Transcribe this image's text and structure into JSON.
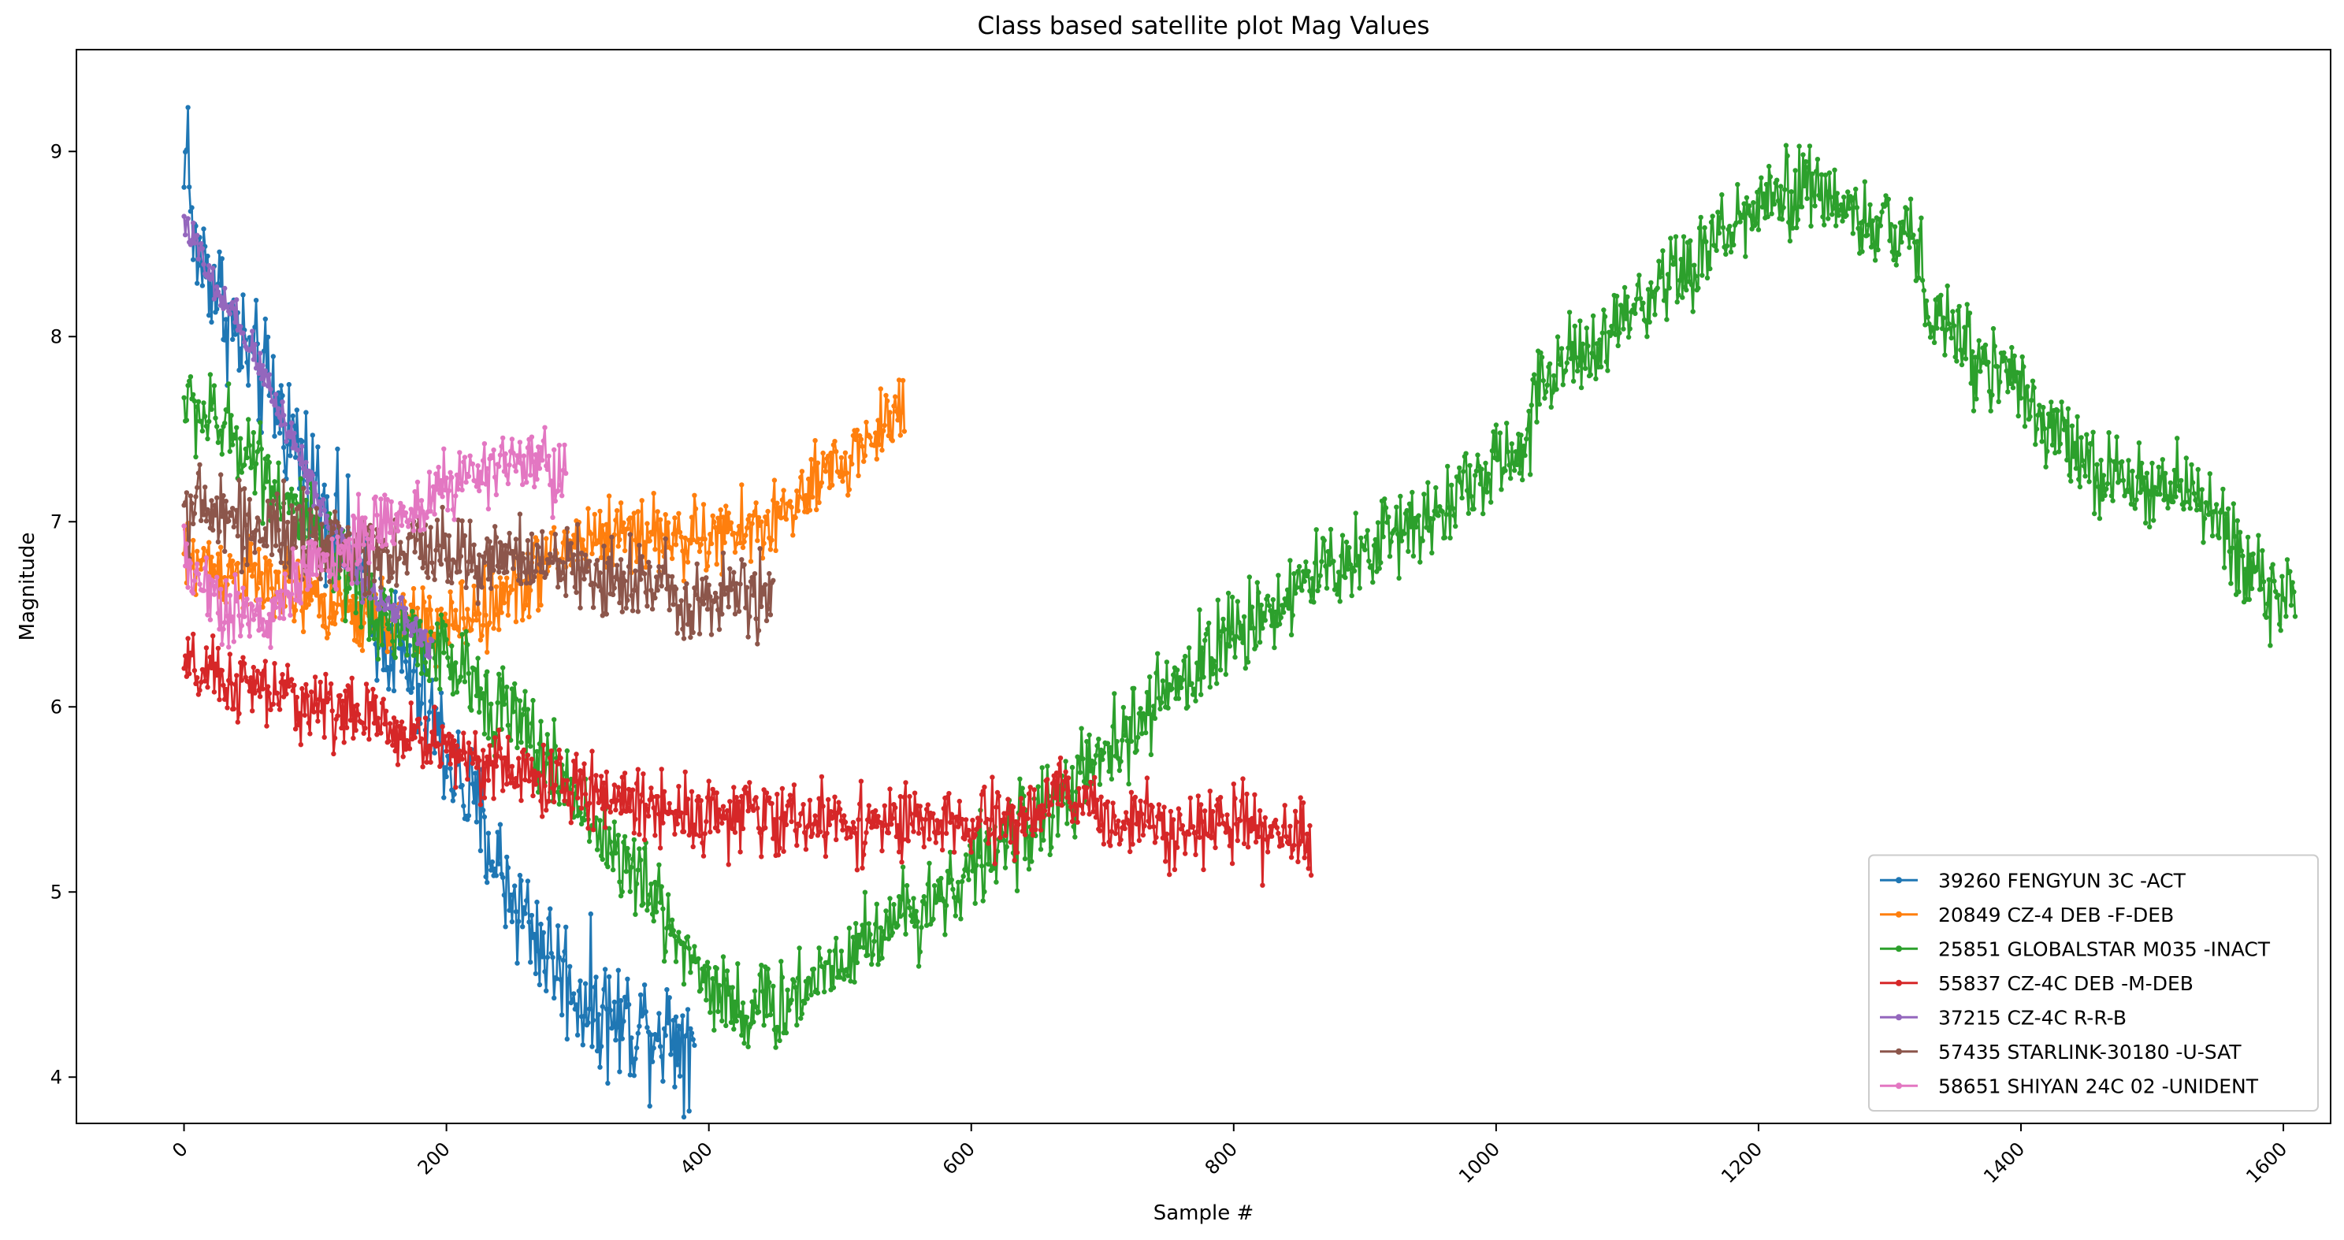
{
  "chart_data": {
    "type": "line",
    "title": "Class based satellite plot Mag Values",
    "xlabel": "Sample #",
    "ylabel": "Magnitude",
    "xlim": [
      -82,
      1636
    ],
    "ylim": [
      3.75,
      9.55
    ],
    "xticks": [
      0,
      200,
      400,
      600,
      800,
      1000,
      1200,
      1400,
      1600
    ],
    "xtick_labels": [
      "0",
      "200",
      "400",
      "600",
      "800",
      "1000",
      "1200",
      "1400",
      "1600"
    ],
    "xtick_rotation": 45,
    "yticks": [
      4,
      5,
      6,
      7,
      8,
      9
    ],
    "ytick_labels": [
      "4",
      "5",
      "6",
      "7",
      "8",
      "9"
    ],
    "grid": false,
    "legend_position": "lower-right",
    "series": [
      {
        "name": "39260 FENGYUN 3C -ACT",
        "color": "#1f77b4",
        "n": 390,
        "noise": 0.22,
        "anchors": [
          [
            0,
            8.75
          ],
          [
            2,
            9.28
          ],
          [
            6,
            8.5
          ],
          [
            20,
            8.35
          ],
          [
            40,
            8.0
          ],
          [
            70,
            7.65
          ],
          [
            100,
            7.2
          ],
          [
            120,
            6.95
          ],
          [
            145,
            6.5
          ],
          [
            170,
            6.2
          ],
          [
            200,
            5.75
          ],
          [
            225,
            5.4
          ],
          [
            245,
            5.05
          ],
          [
            270,
            4.75
          ],
          [
            300,
            4.45
          ],
          [
            330,
            4.3
          ],
          [
            360,
            4.28
          ],
          [
            390,
            4.2
          ]
        ]
      },
      {
        "name": "20849 CZ-4 DEB -F-DEB",
        "color": "#ff7f0e",
        "n": 550,
        "noise": 0.14,
        "anchors": [
          [
            0,
            6.8
          ],
          [
            40,
            6.72
          ],
          [
            90,
            6.6
          ],
          [
            130,
            6.5
          ],
          [
            170,
            6.45
          ],
          [
            200,
            6.45
          ],
          [
            240,
            6.55
          ],
          [
            270,
            6.75
          ],
          [
            300,
            6.9
          ],
          [
            340,
            6.95
          ],
          [
            390,
            6.9
          ],
          [
            430,
            6.95
          ],
          [
            460,
            7.05
          ],
          [
            500,
            7.3
          ],
          [
            530,
            7.5
          ],
          [
            550,
            7.65
          ]
        ]
      },
      {
        "name": "25851 GLOBALSTAR M035 -INACT",
        "color": "#2ca02c",
        "n": 1610,
        "noise": 0.16,
        "anchors": [
          [
            0,
            7.65
          ],
          [
            20,
            7.55
          ],
          [
            50,
            7.4
          ],
          [
            80,
            7.1
          ],
          [
            110,
            6.8
          ],
          [
            140,
            6.55
          ],
          [
            170,
            6.4
          ],
          [
            200,
            6.25
          ],
          [
            250,
            5.95
          ],
          [
            300,
            5.5
          ],
          [
            330,
            5.2
          ],
          [
            360,
            4.95
          ],
          [
            390,
            4.6
          ],
          [
            410,
            4.45
          ],
          [
            430,
            4.35
          ],
          [
            460,
            4.4
          ],
          [
            490,
            4.6
          ],
          [
            530,
            4.8
          ],
          [
            580,
            5.0
          ],
          [
            630,
            5.3
          ],
          [
            670,
            5.5
          ],
          [
            720,
            5.85
          ],
          [
            760,
            6.15
          ],
          [
            800,
            6.4
          ],
          [
            850,
            6.65
          ],
          [
            900,
            6.85
          ],
          [
            950,
            7.05
          ],
          [
            1000,
            7.3
          ],
          [
            1020,
            7.35
          ],
          [
            1030,
            7.75
          ],
          [
            1080,
            7.95
          ],
          [
            1130,
            8.25
          ],
          [
            1180,
            8.6
          ],
          [
            1220,
            8.75
          ],
          [
            1250,
            8.8
          ],
          [
            1280,
            8.6
          ],
          [
            1320,
            8.55
          ],
          [
            1330,
            8.1
          ],
          [
            1370,
            7.9
          ],
          [
            1400,
            7.75
          ],
          [
            1440,
            7.35
          ],
          [
            1480,
            7.2
          ],
          [
            1530,
            7.15
          ],
          [
            1570,
            6.85
          ],
          [
            1590,
            6.6
          ],
          [
            1610,
            6.6
          ]
        ]
      },
      {
        "name": "55837 CZ-4C DEB -M-DEB",
        "color": "#d62728",
        "n": 860,
        "noise": 0.13,
        "anchors": [
          [
            0,
            6.2
          ],
          [
            40,
            6.12
          ],
          [
            80,
            6.05
          ],
          [
            120,
            5.98
          ],
          [
            160,
            5.88
          ],
          [
            200,
            5.78
          ],
          [
            250,
            5.65
          ],
          [
            300,
            5.55
          ],
          [
            350,
            5.48
          ],
          [
            400,
            5.42
          ],
          [
            500,
            5.38
          ],
          [
            600,
            5.35
          ],
          [
            650,
            5.42
          ],
          [
            670,
            5.55
          ],
          [
            700,
            5.4
          ],
          [
            760,
            5.37
          ],
          [
            800,
            5.35
          ],
          [
            840,
            5.28
          ],
          [
            860,
            5.3
          ]
        ]
      },
      {
        "name": "37215 CZ-4C R-R-B",
        "color": "#9467bd",
        "n": 190,
        "noise": 0.07,
        "anchors": [
          [
            0,
            8.65
          ],
          [
            20,
            8.3
          ],
          [
            50,
            7.95
          ],
          [
            80,
            7.5
          ],
          [
            110,
            7.0
          ],
          [
            140,
            6.65
          ],
          [
            170,
            6.45
          ],
          [
            190,
            6.3
          ]
        ]
      },
      {
        "name": "57435 STARLINK-30180 -U-SAT",
        "color": "#8c564b",
        "n": 450,
        "noise": 0.15,
        "anchors": [
          [
            0,
            7.1
          ],
          [
            40,
            7.0
          ],
          [
            100,
            6.88
          ],
          [
            150,
            6.85
          ],
          [
            200,
            6.85
          ],
          [
            260,
            6.78
          ],
          [
            320,
            6.72
          ],
          [
            380,
            6.62
          ],
          [
            420,
            6.6
          ],
          [
            450,
            6.6
          ]
        ]
      },
      {
        "name": "58651 SHIYAN 24C 02 -UNIDENT",
        "color": "#e377c2",
        "n": 292,
        "noise": 0.13,
        "anchors": [
          [
            0,
            6.8
          ],
          [
            30,
            6.55
          ],
          [
            60,
            6.45
          ],
          [
            90,
            6.7
          ],
          [
            130,
            6.9
          ],
          [
            170,
            7.05
          ],
          [
            200,
            7.2
          ],
          [
            240,
            7.3
          ],
          [
            270,
            7.3
          ],
          [
            292,
            7.25
          ]
        ]
      }
    ]
  }
}
